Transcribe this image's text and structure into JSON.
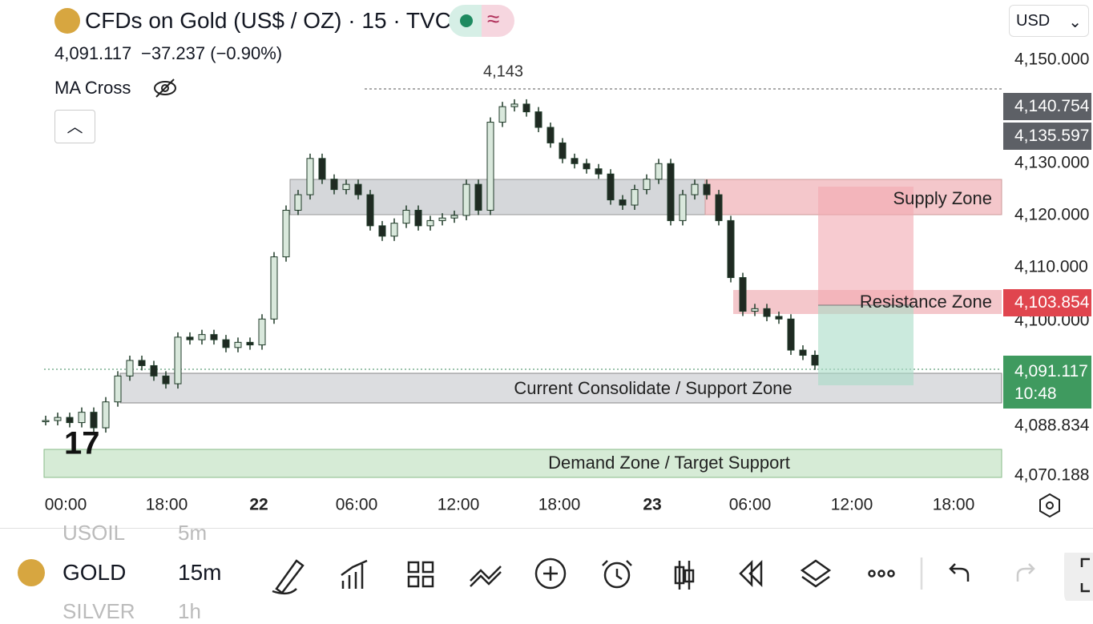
{
  "header": {
    "title": "CFDs on Gold (US$ / OZ) · 15 · TVC",
    "price": "4,091.117",
    "change": "−37.237 (−0.90%)",
    "indicator": "MA Cross"
  },
  "currency": "USD",
  "chart": {
    "high_label": "4,143",
    "ylim": [
      4068.8,
      4158.5
    ],
    "price_scale": [
      "4,150.000",
      "4,130.000",
      "4,120.000",
      "4,110.000",
      "4,100.000",
      "4,088.834",
      "4,070.188"
    ],
    "price_tags": [
      "4,140.754",
      "4,135.597",
      "4,103.854",
      "4,091.117",
      "10:48"
    ],
    "time_labels": [
      "00:00",
      "18:00",
      "22",
      "06:00",
      "12:00",
      "18:00",
      "23",
      "06:00",
      "12:00",
      "18:00"
    ],
    "zones": [
      "Supply Zone",
      "Resistance Zone",
      "Current Consolidate / Support Zone",
      "Demand Zone / Target Support"
    ],
    "closes": [
      4080.4,
      4081,
      4080,
      4082,
      4079,
      4084,
      4089,
      4092,
      4091,
      4089,
      4087.5,
      4096.5,
      4096,
      4097,
      4096,
      4094.5,
      4095.5,
      4095,
      4100,
      4112,
      4121,
      4124,
      4131,
      4127,
      4125,
      4126,
      4124,
      4118,
      4116,
      4118.5,
      4121,
      4118,
      4119,
      4119.5,
      4120,
      4126,
      4121,
      4138,
      4141,
      4141.5,
      4140,
      4137,
      4134,
      4131,
      4130,
      4129,
      4128,
      4123,
      4122,
      4125,
      4127,
      4130,
      4119,
      4124,
      4126,
      4124,
      4119,
      4108,
      4101.5,
      4102,
      4100.5,
      4100,
      4094,
      4093,
      4091.1
    ]
  },
  "toolbar": {
    "symbols": [
      "USOIL",
      "GOLD",
      "SILVER"
    ],
    "intervals": [
      "5m",
      "15m",
      "1h"
    ]
  }
}
